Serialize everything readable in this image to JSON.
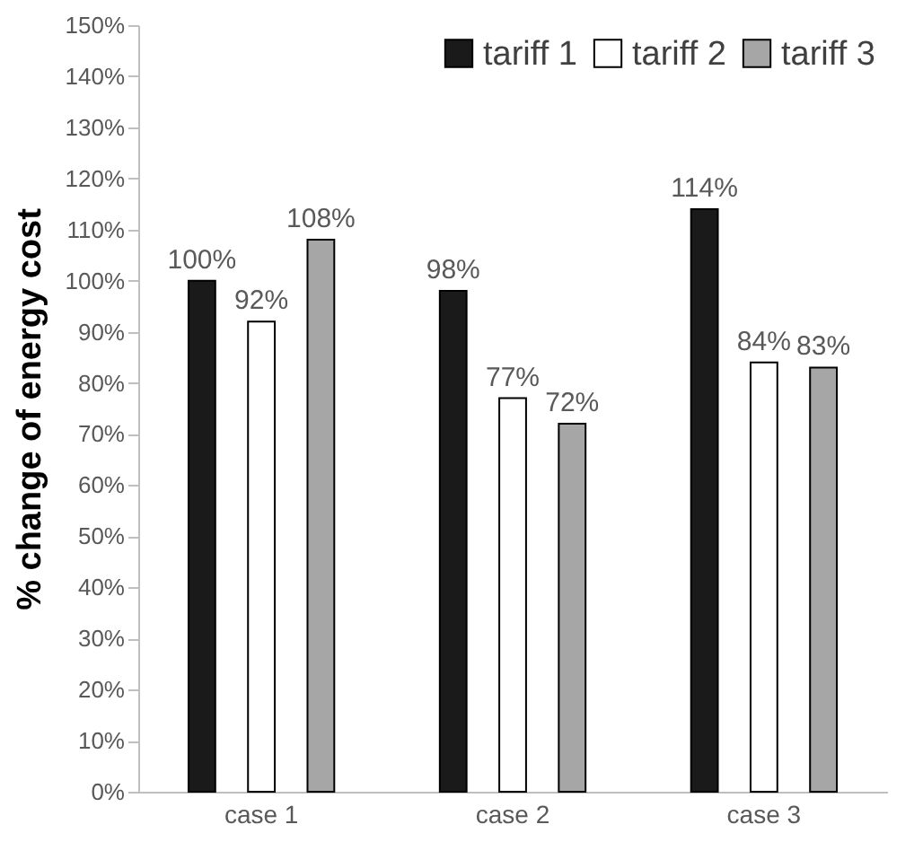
{
  "chart_data": {
    "type": "bar",
    "ylabel": "% change of energy cost",
    "categories": [
      "case 1",
      "case 2",
      "case 3"
    ],
    "series": [
      {
        "name": "tariff 1",
        "color": "#1a1a1a",
        "values": [
          100,
          98,
          114
        ],
        "value_labels": [
          "100%",
          "98%",
          "114%"
        ]
      },
      {
        "name": "tariff 2",
        "color": "#ffffff",
        "values": [
          92,
          77,
          84
        ],
        "value_labels": [
          "92%",
          "77%",
          "84%"
        ]
      },
      {
        "name": "tariff 3",
        "color": "#a6a6a6",
        "values": [
          108,
          72,
          83
        ],
        "value_labels": [
          "108%",
          "72%",
          "83%"
        ]
      }
    ],
    "ylim": [
      0,
      150
    ],
    "yticks": [
      {
        "value": 0,
        "label": "0%"
      },
      {
        "value": 10,
        "label": "10%"
      },
      {
        "value": 20,
        "label": "20%"
      },
      {
        "value": 30,
        "label": "30%"
      },
      {
        "value": 40,
        "label": "40%"
      },
      {
        "value": 50,
        "label": "50%"
      },
      {
        "value": 60,
        "label": "60%"
      },
      {
        "value": 70,
        "label": "70%"
      },
      {
        "value": 80,
        "label": "80%"
      },
      {
        "value": 90,
        "label": "90%"
      },
      {
        "value": 100,
        "label": "100%"
      },
      {
        "value": 110,
        "label": "110%"
      },
      {
        "value": 120,
        "label": "120%"
      },
      {
        "value": 130,
        "label": "130%"
      },
      {
        "value": 140,
        "label": "140%"
      },
      {
        "value": 150,
        "label": "150%"
      }
    ],
    "legend": "top right",
    "grid": false
  }
}
